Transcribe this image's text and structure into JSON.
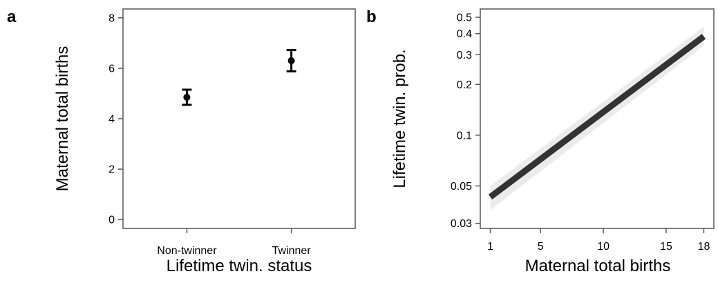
{
  "chart_data": [
    {
      "panel": "a",
      "type": "scatter",
      "xlabel": "Lifetime twin. status",
      "ylabel": "Maternal total births",
      "categories": [
        "Non-twinner",
        "Twinner"
      ],
      "values": [
        4.85,
        6.3
      ],
      "error_low": [
        4.55,
        5.88
      ],
      "error_high": [
        5.15,
        6.72
      ],
      "ylim": [
        -0.35,
        8.35
      ],
      "yticks": [
        0,
        2,
        4,
        6,
        8
      ],
      "grid": false,
      "colors": {
        "points": "#000000",
        "frame": "#555555"
      }
    },
    {
      "panel": "b",
      "type": "line",
      "xlabel": "Maternal total births",
      "ylabel": "Lifetime twin. prob.",
      "x": [
        1,
        18
      ],
      "y": [
        0.043,
        0.385
      ],
      "ci_low": [
        0.036,
        0.34
      ],
      "ci_high": [
        0.05,
        0.44
      ],
      "xlim": [
        0.2,
        18.8
      ],
      "ylim": [
        0.028,
        0.56
      ],
      "xticks": [
        1,
        5,
        10,
        15,
        18
      ],
      "yticks": [
        0.03,
        0.05,
        0.1,
        0.2,
        0.3,
        0.4,
        0.5
      ],
      "y_scale": "log",
      "grid": false,
      "colors": {
        "line": "#333333",
        "band": "#ebebeb",
        "frame": "#555555"
      }
    }
  ]
}
